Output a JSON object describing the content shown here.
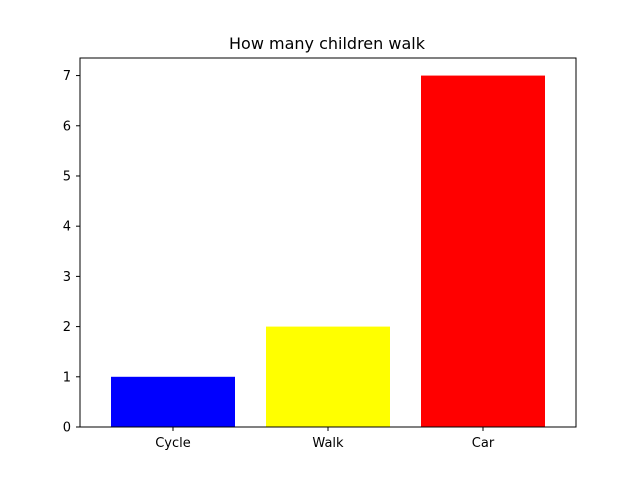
{
  "chart_data": {
    "type": "bar",
    "title": "How many children walk",
    "xlabel": "",
    "ylabel": "",
    "categories": [
      "Cycle",
      "Walk",
      "Car"
    ],
    "values": [
      1,
      2,
      7
    ],
    "colors": [
      "#0000ff",
      "#ffff00",
      "#ff0000"
    ],
    "ylim": [
      0,
      7.35
    ],
    "yticks": [
      "0",
      "1",
      "2",
      "3",
      "4",
      "5",
      "6",
      "7"
    ],
    "grid": false,
    "legend": "none"
  }
}
